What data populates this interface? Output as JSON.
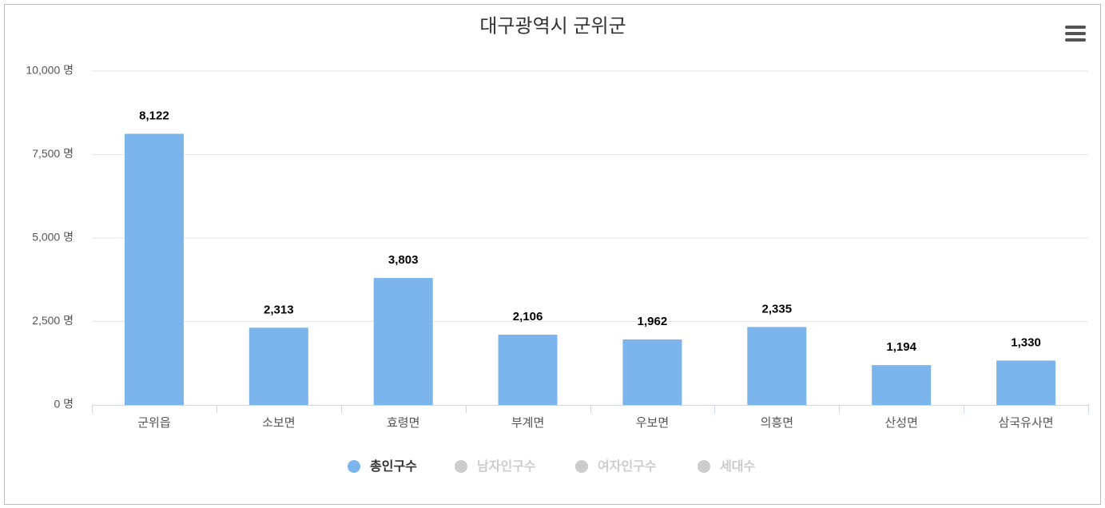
{
  "chart_data": {
    "type": "bar",
    "title": "대구광역시 군위군",
    "categories": [
      "군위읍",
      "소보면",
      "효령면",
      "부계면",
      "우보면",
      "의흥면",
      "산성면",
      "삼국유사면"
    ],
    "series": [
      {
        "name": "총인구수",
        "color": "#7cb5ec",
        "visible": true,
        "values": [
          8122,
          2313,
          3803,
          2106,
          1962,
          2335,
          1194,
          1330
        ],
        "value_labels": [
          "8,122",
          "2,313",
          "3,803",
          "2,106",
          "1,962",
          "2,335",
          "1,194",
          "1,330"
        ]
      },
      {
        "name": "남자인구수",
        "color": "#cccccc",
        "visible": false
      },
      {
        "name": "여자인구수",
        "color": "#cccccc",
        "visible": false
      },
      {
        "name": "세대수",
        "color": "#cccccc",
        "visible": false
      }
    ],
    "ylim": [
      0,
      10000
    ],
    "yticks": [
      {
        "value": 0,
        "label": "0 명"
      },
      {
        "value": 2500,
        "label": "2,500 명"
      },
      {
        "value": 5000,
        "label": "5,000 명"
      },
      {
        "value": 7500,
        "label": "7,500 명"
      },
      {
        "value": 10000,
        "label": "10,000 명"
      }
    ],
    "grid": true,
    "legend": "bottom"
  }
}
